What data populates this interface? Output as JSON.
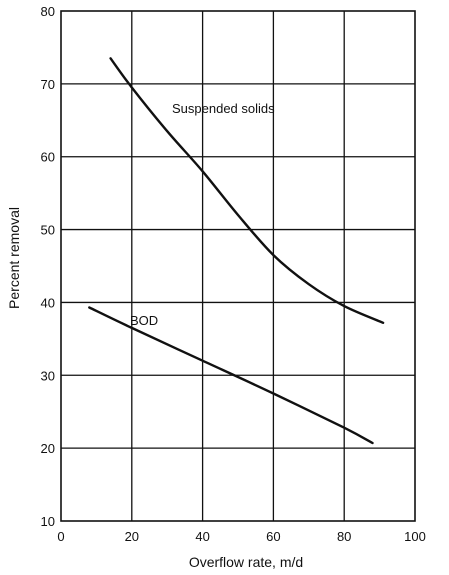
{
  "chart_data": {
    "type": "line",
    "xlabel": "Overflow rate, m/d",
    "ylabel": "Percent removal",
    "xlim": [
      0,
      100
    ],
    "ylim": [
      10,
      80
    ],
    "x_ticks": [
      0,
      20,
      40,
      60,
      80,
      100
    ],
    "y_ticks": [
      10,
      20,
      30,
      40,
      50,
      60,
      70,
      80
    ],
    "grid": true,
    "series": [
      {
        "name": "Suspended solids",
        "x": [
          14,
          20,
          30,
          40,
          50,
          60,
          70,
          80,
          91
        ],
        "y": [
          73.5,
          69.5,
          63.5,
          58,
          52,
          46.5,
          42.5,
          39.5,
          37.2
        ]
      },
      {
        "name": "BOD",
        "x": [
          8,
          20,
          40,
          60,
          80,
          88
        ],
        "y": [
          39.3,
          36.5,
          32,
          27.5,
          22.8,
          20.7
        ]
      }
    ],
    "annotations": [
      "Suspended solids",
      "BOD"
    ]
  }
}
